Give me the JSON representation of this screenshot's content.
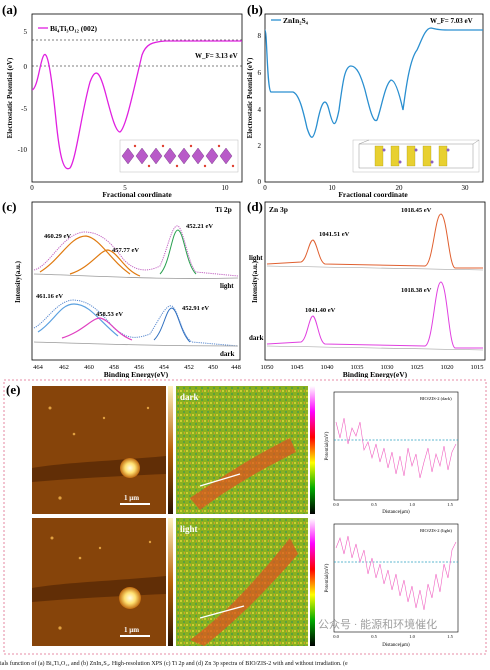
{
  "panel_a": {
    "letter": "(a)",
    "legend": "Bi₄Ti₃O₁₂ (002)",
    "wf": "W_F= 3.13 eV",
    "xlabel": "Fractional coordinate",
    "ylabel": "Electrostatic Potential (eV)",
    "xticks": [
      "0",
      "5",
      "10"
    ],
    "yticks": [
      "5",
      "0",
      "-5",
      "-10"
    ],
    "line_color": "#e020e0"
  },
  "panel_b": {
    "letter": "(b)",
    "legend": "ZnIn₂S₄",
    "wf": "W_F= 7.03 eV",
    "xlabel": "Fractional coordinate",
    "ylabel": "Electrostatic Potential (eV)",
    "xticks": [
      "0",
      "10",
      "20",
      "30"
    ],
    "yticks": [
      "8",
      "6",
      "4",
      "2",
      "0"
    ],
    "line_color": "#2a8fd0"
  },
  "panel_c": {
    "letter": "(c)",
    "title": "Ti 2p",
    "xlabel": "Binding Energy(eV)",
    "ylabel": "Intensity(a.u.)",
    "xticks": [
      "464",
      "462",
      "460",
      "458",
      "456",
      "454",
      "452",
      "450",
      "448"
    ],
    "light_label": "light",
    "dark_label": "dark",
    "peaks_light": [
      "460.29 eV",
      "457.77 eV",
      "452.21 eV"
    ],
    "peaks_dark": [
      "461.16 eV",
      "458.53 eV",
      "452.91 eV"
    ]
  },
  "panel_d": {
    "letter": "(d)",
    "title": "Zn 3p",
    "xlabel": "Binding Energy(eV)",
    "ylabel": "Intensity(a.u.)",
    "xticks": [
      "1050",
      "1045",
      "1040",
      "1035",
      "1030",
      "1025",
      "1020",
      "1015"
    ],
    "light_label": "light",
    "dark_label": "dark",
    "peaks_light": [
      "1041.51 eV",
      "1018.45 eV"
    ],
    "peaks_dark": [
      "1041.40 eV",
      "1018.38 eV"
    ]
  },
  "panel_e": {
    "letter": "(e)",
    "dark_label": "dark",
    "light_label": "light",
    "scale_bar": "1 μm",
    "legend_dark": "BIO/ZIS-2 (dark)",
    "legend_light": "BIO/ZIS-2 (light)",
    "xlabel": "Distance(μm)",
    "ylabel": "Potential(mV)",
    "xticks": [
      "0.0",
      "0.5",
      "1.0",
      "1.5"
    ]
  },
  "caption": "ials function of (a) Bi₄Ti₃O₁₂ and (b) ZnIn₂S₄. High-resolution XPS (c) Ti 2p and (d) Zn 3p spectra of BIO/ZIS-2 with and without irradiation. (e",
  "watermark": "公众号 · 能源和环境催化"
}
